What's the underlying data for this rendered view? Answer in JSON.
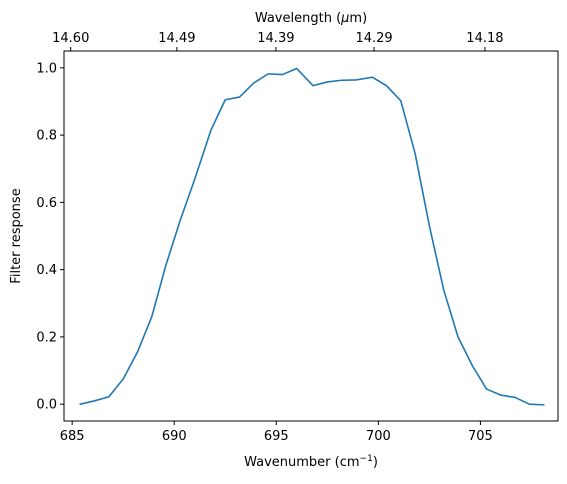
{
  "chart_data": {
    "type": "line",
    "title": "",
    "xlabel": "Wavenumber (cm",
    "xlabel_sup": "−1",
    "xlabel_end": ")",
    "ylabel": "Filter response",
    "top_xlabel": "Wavelength (",
    "top_xlabel_mu": "μ",
    "top_xlabel_end": "m)",
    "xlim": [
      684.6,
      708.8
    ],
    "ylim": [
      -0.05,
      1.05
    ],
    "grid": false,
    "legend": "none",
    "line_color": "#1f77b4",
    "x_ticks": [
      685,
      690,
      695,
      700,
      705
    ],
    "x_tick_labels": [
      "685",
      "690",
      "695",
      "700",
      "705"
    ],
    "y_ticks": [
      0.0,
      0.2,
      0.4,
      0.6,
      0.8,
      1.0
    ],
    "y_tick_labels": [
      "0.0",
      "0.2",
      "0.4",
      "0.6",
      "0.8",
      "1.0"
    ],
    "top_ticks": [
      {
        "wavenumber": 684.93,
        "label": "14.60"
      },
      {
        "wavenumber": 690.13,
        "label": "14.49"
      },
      {
        "wavenumber": 694.98,
        "label": "14.39"
      },
      {
        "wavenumber": 699.79,
        "label": "14.29"
      },
      {
        "wavenumber": 705.22,
        "label": "14.18"
      }
    ],
    "series": [
      {
        "x": [
          685.4,
          686.1,
          686.8,
          687.5,
          688.2,
          688.9,
          689.6,
          690.3,
          691.0,
          691.8,
          692.5,
          693.2,
          693.9,
          694.6,
          695.3,
          696.0,
          696.8,
          697.5,
          698.2,
          698.9,
          699.7,
          700.4,
          701.1,
          701.8,
          702.5,
          703.2,
          703.9,
          704.6,
          705.3,
          706.0,
          706.7,
          707.4,
          708.1
        ],
        "y": [
          0.0,
          0.01,
          0.022,
          0.075,
          0.155,
          0.26,
          0.415,
          0.548,
          0.668,
          0.815,
          0.905,
          0.913,
          0.955,
          0.982,
          0.98,
          0.998,
          0.947,
          0.958,
          0.963,
          0.964,
          0.972,
          0.947,
          0.902,
          0.745,
          0.53,
          0.34,
          0.2,
          0.115,
          0.045,
          0.027,
          0.02,
          0.0,
          -0.002
        ]
      }
    ]
  }
}
